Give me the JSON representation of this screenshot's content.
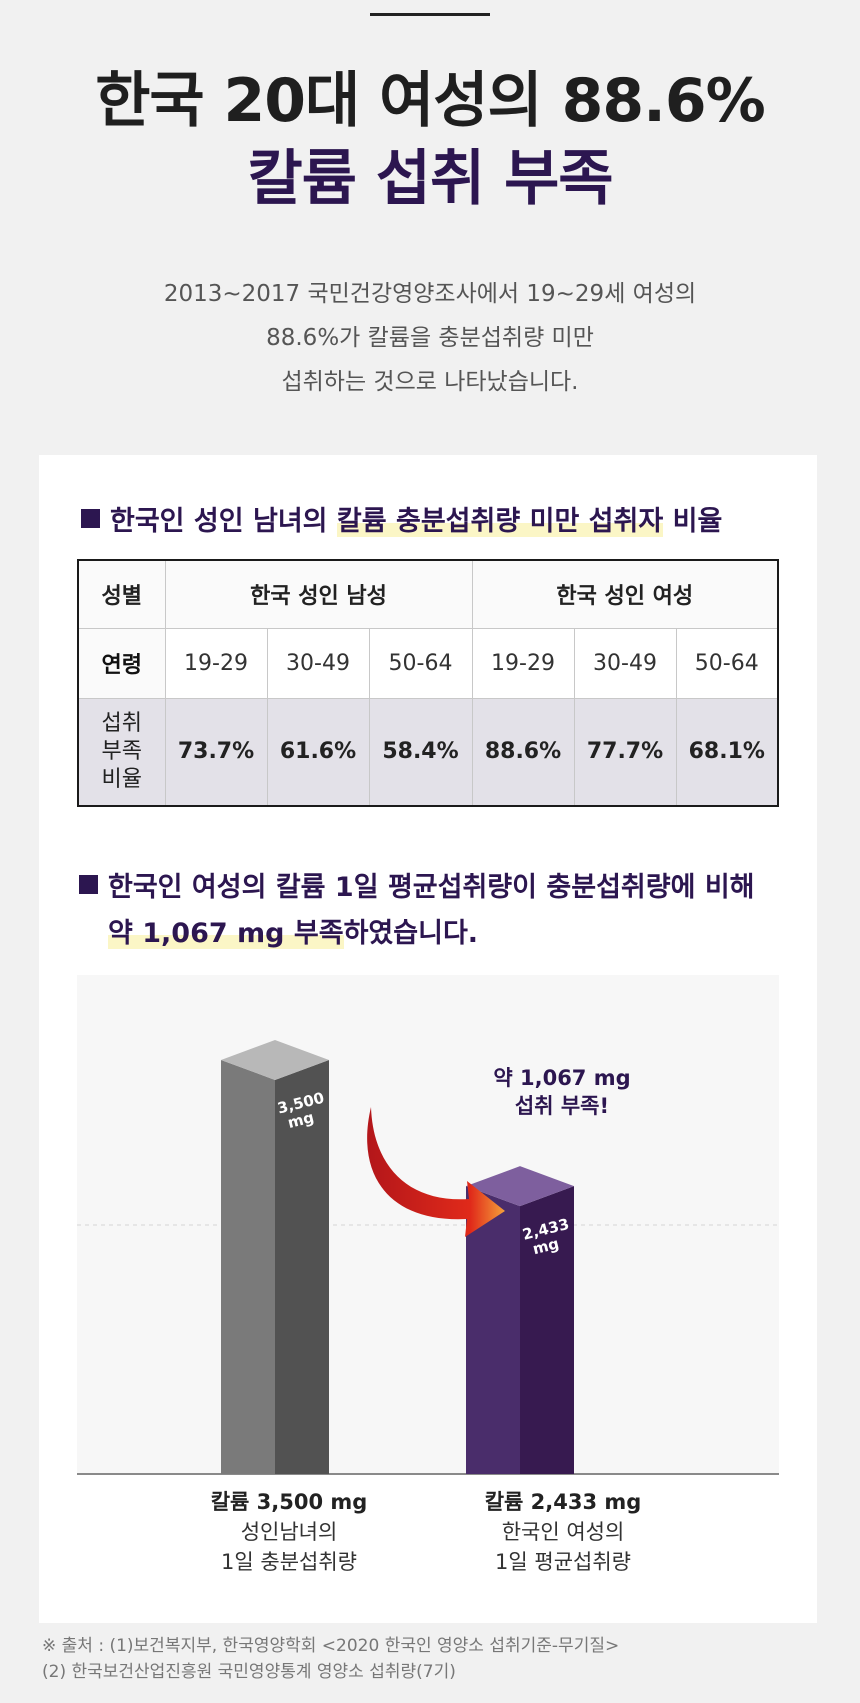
{
  "hero": {
    "title_line1": "한국 20대 여성의 88.6%",
    "title_line2": "칼륨 섭취 부족",
    "desc_line1": "2013~2017 국민건강영양조사에서 19~29세 여성의",
    "desc_line2": "88.6%가 칼륨을 충분섭취량 미만",
    "desc_line3": "섭취하는 것으로 나타났습니다."
  },
  "section1": {
    "heading_pre": "한국인 성인 남녀의 ",
    "heading_highlight": "칼륨 충분섭취량 미만 섭취자",
    "heading_post": " 비율"
  },
  "table": {
    "col_sex": "성별",
    "group_male": "한국 성인 남성",
    "group_female": "한국 성인 여성",
    "row_age": "연령",
    "ages": [
      "19-29",
      "30-49",
      "50-64",
      "19-29",
      "30-49",
      "50-64"
    ],
    "row_rate_1": "섭취",
    "row_rate_2": "부족",
    "row_rate_3": "비율",
    "rates": [
      "73.7%",
      "61.6%",
      "58.4%",
      "88.6%",
      "77.7%",
      "68.1%"
    ]
  },
  "section2": {
    "heading_line1": "한국인 여성의 칼륨 1일 평균섭취량이 충분섭취량에 비해",
    "heading_line2_highlight": "약 1,067 mg 부족",
    "heading_line2_post": "하였습니다."
  },
  "chart_data": {
    "type": "bar",
    "categories": [
      "성인남녀의 1일 충분섭취량",
      "한국인 여성의 1일 평균섭취량"
    ],
    "values": [
      3500,
      2433
    ],
    "bar_labels": [
      [
        "3,500",
        "mg"
      ],
      [
        "2,433",
        "mg"
      ]
    ],
    "annotation_line1": "약 1,067 mg",
    "annotation_line2": "섭취 부족!",
    "colors": {
      "bar1_front": "#7a7a7a",
      "bar1_side": "#525252",
      "bar1_top": "#b8b8b8",
      "bar2_front": "#4a2d6b",
      "bar2_side": "#371a50",
      "bar2_top": "#7e5f9e",
      "arrow": "#d6211c"
    }
  },
  "xlabels": [
    {
      "value": "칼륨 3,500 mg",
      "line1": "성인남녀의",
      "line2": "1일 충분섭취량"
    },
    {
      "value": "칼륨 2,433 mg",
      "line1": "한국인 여성의",
      "line2": "1일 평균섭취량"
    }
  ],
  "source": {
    "line1": "※ 출처 : (1)보건복지부, 한국영양학회 <2020 한국인 영양소 섭취기준-무기질>",
    "line2": "(2) 한국보건산업진흥원 국민영양통계 영양소 섭취량(7기)"
  }
}
